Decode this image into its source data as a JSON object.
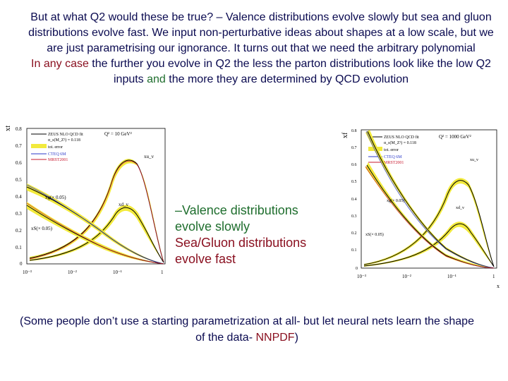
{
  "slide": {
    "intro_line": "But at what Q2 would these be true? – Valence distributions evolve slowly but sea and gluon distributions evolve fast. We input non-perturbative ideas about shapes at a low scale, but we are just parametrising our ignorance. It turns out that we need the arbitrary polynomial",
    "second_line_a": "In any case",
    "second_line_b": " the further you  evolve in Q2 the less the parton distributions look like the low Q2 inputs ",
    "second_line_c": "and",
    "second_line_d": " the more they are determined by QCD evolution",
    "mid_line_1": "–Valence  distributions evolve slowly",
    "mid_line_2": "Sea/Gluon distributions evolve fast",
    "footer_a": "(Some people don’t use a starting parametrization at all- but let neural nets learn the shape of the data- ",
    "footer_b": "NNPDF",
    "footer_c": ")"
  },
  "plot_left": {
    "ylabel": "xf",
    "legend_title": "ZEUS NLO QCD fit",
    "legend_alpha": "α_s(M_Z²) = 0.118",
    "legend_err": "tot. error",
    "legend_cteq": "CTEQ 6M",
    "legend_mrst": "MRST2001",
    "q2_label": "Q² = 10 GeV²",
    "label_xuv": "xu_v",
    "label_xdv": "xd_v",
    "label_xg": "xg(× 0.05)",
    "label_xs": "xS(× 0.05)",
    "yticks": [
      "0.8",
      "0.7",
      "0.6",
      "0.5",
      "0.4",
      "0.3",
      "0.2",
      "0.1",
      "0"
    ],
    "xticks": [
      "10⁻³",
      "10⁻²",
      "10⁻¹",
      "1"
    ]
  },
  "plot_right": {
    "ylabel": "xf",
    "legend_title": "ZEUS NLO QCD fit",
    "legend_alpha": "α_s(M_Z²) = 0.118",
    "legend_err": "tot. error",
    "legend_cteq": "CTEQ 6M",
    "legend_mrst": "MRST2001",
    "q2_label": "Q² = 1000 GeV²",
    "label_xuv": "xu_v",
    "label_xdv": "xd_v",
    "label_xg": "xg(× 0.05)",
    "label_xs": "xS(× 0.05)",
    "xlabel": "x",
    "yticks": [
      "0.8",
      "0.7",
      "0.6",
      "0.5",
      "0.4",
      "0.3",
      "0.2",
      "0.1",
      "0"
    ],
    "xticks": [
      "10⁻³",
      "10⁻²",
      "10⁻¹",
      "1"
    ]
  },
  "colors": {
    "band": "#f2ea3c",
    "zeus": "#000000",
    "cteq": "#2b39c9",
    "mrst": "#c8182e",
    "text_dark": "#0a0a50",
    "text_red": "#8a1020",
    "text_green": "#1f6e2e"
  }
}
